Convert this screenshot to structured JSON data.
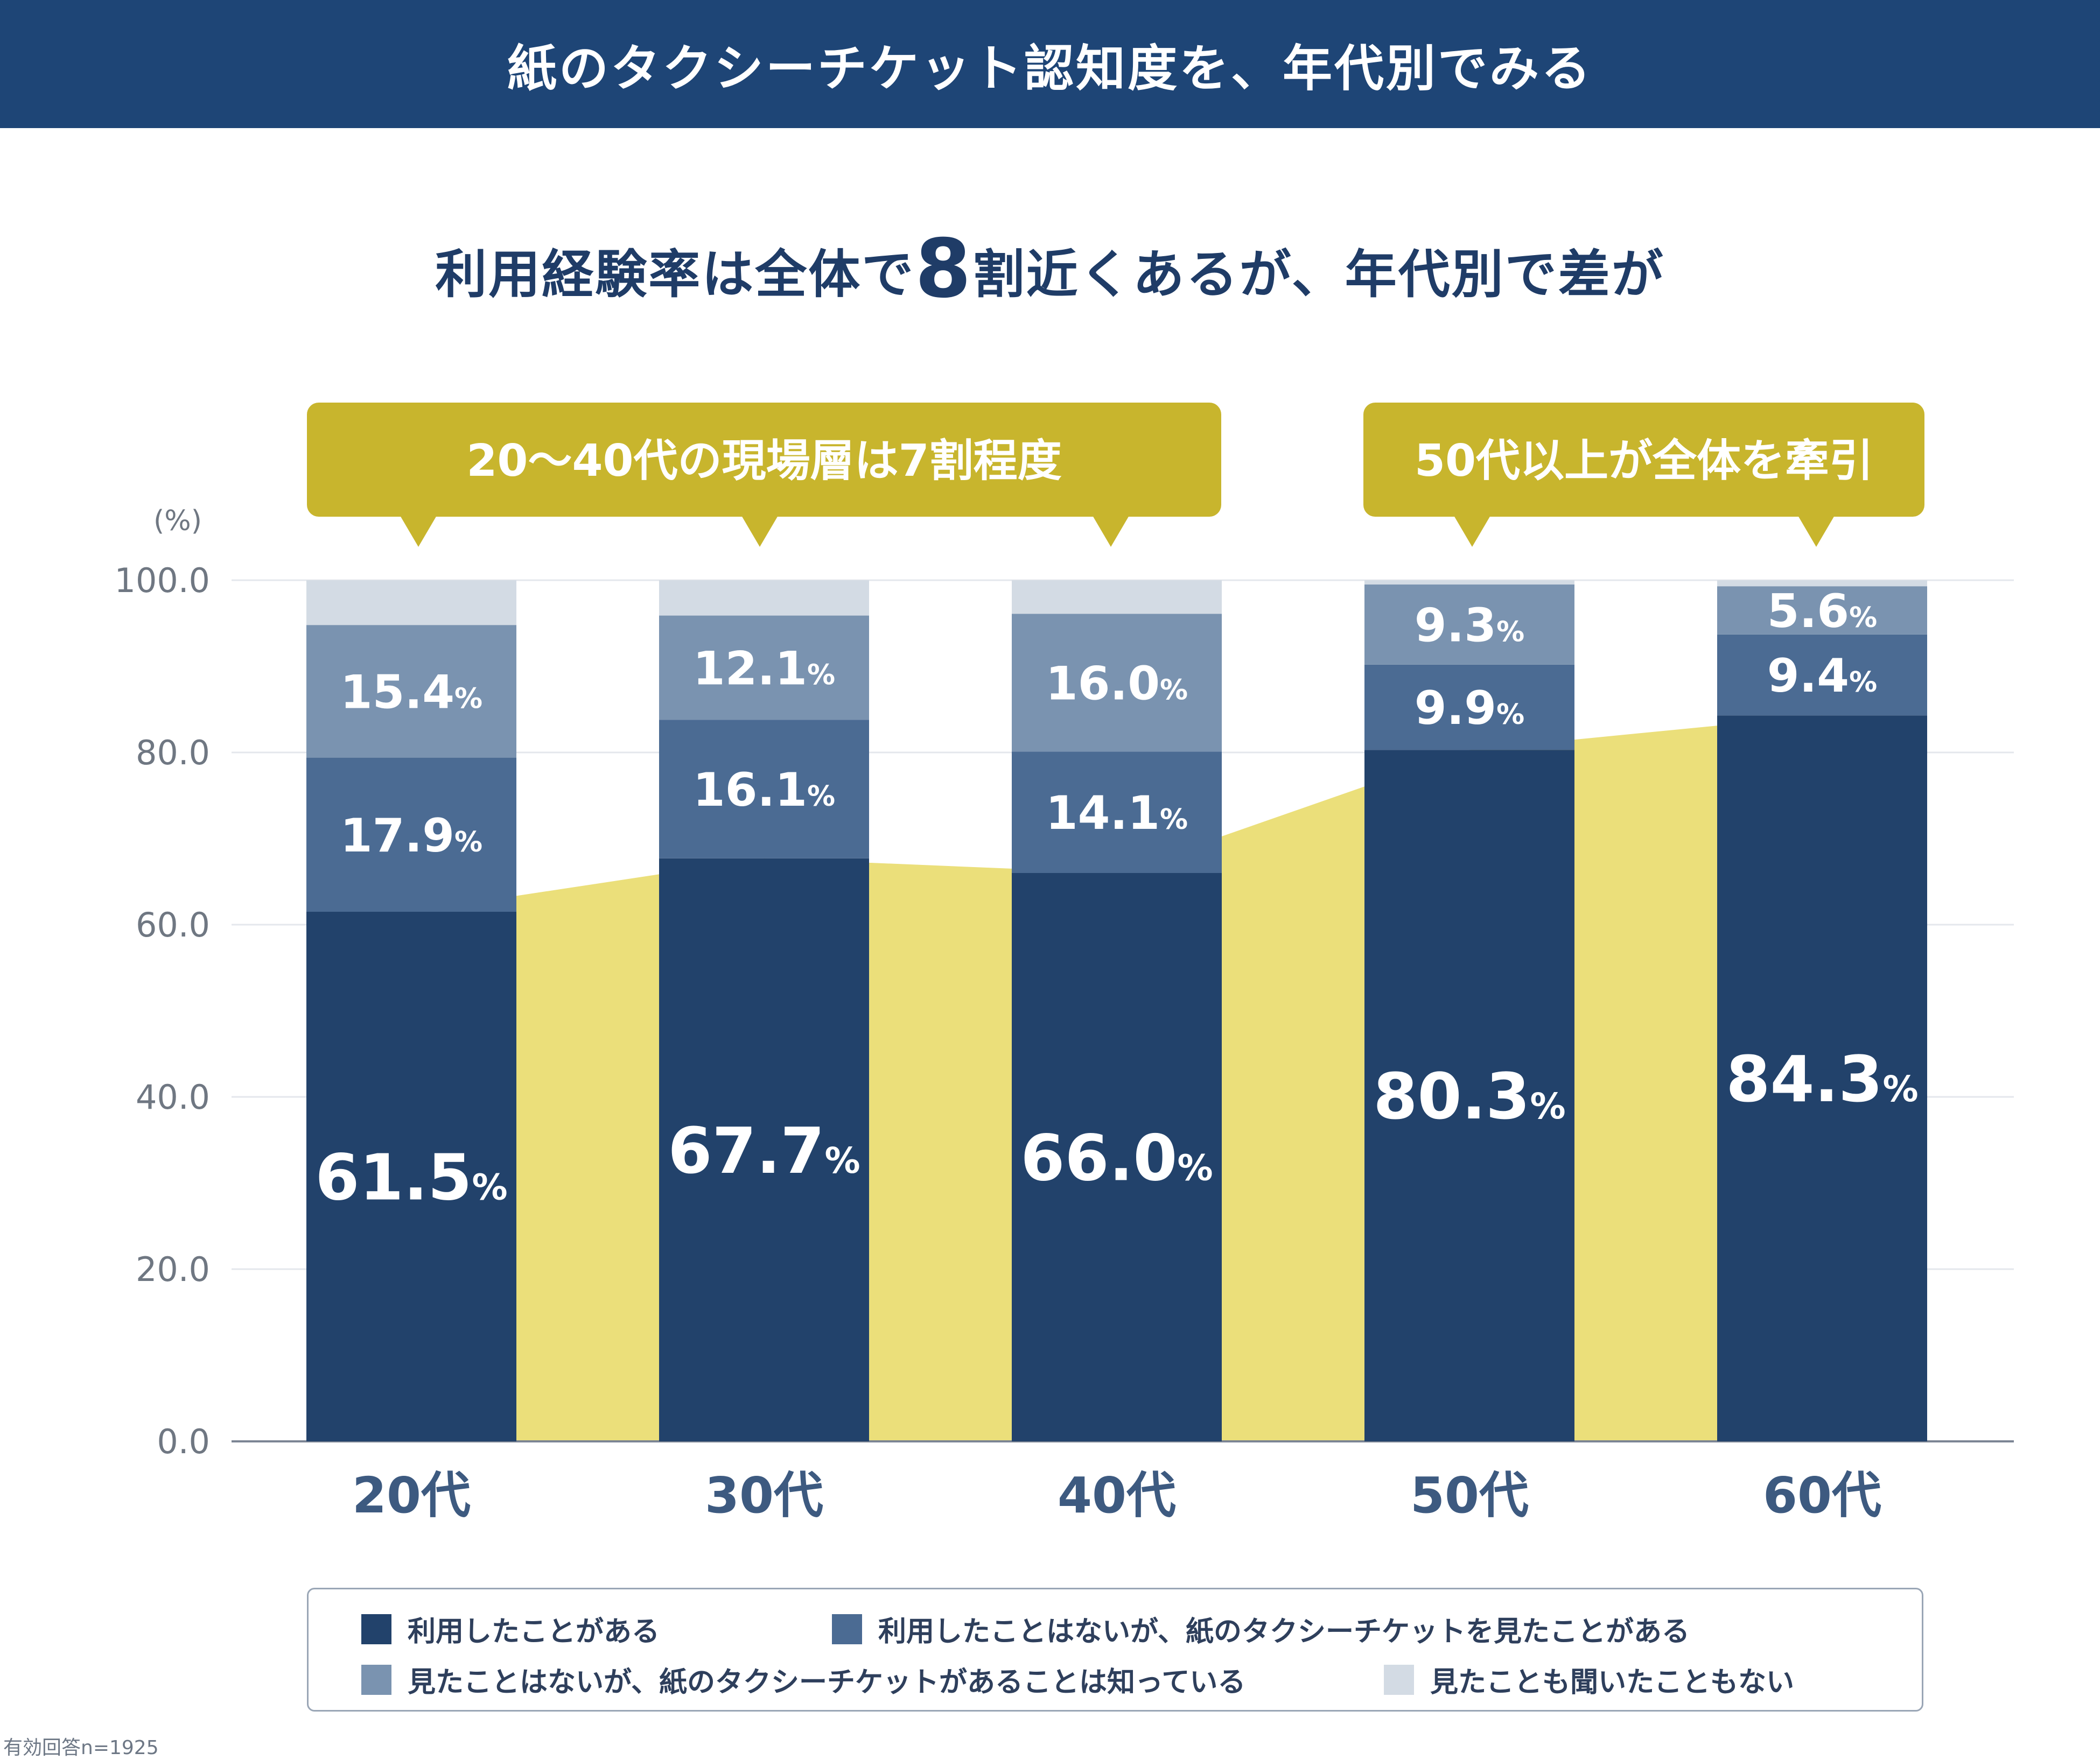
{
  "header": {
    "title": "紙のタクシーチケット認知度を、年代別でみる"
  },
  "subtitle": {
    "before": "利用経験率は全体で",
    "highlight": "8",
    "after": "割近くあるが、年代別で差が"
  },
  "callouts": [
    {
      "text": "20～40代の現場層は7割程度"
    },
    {
      "text": "50代以上が全体を牽引"
    }
  ],
  "chart_data": {
    "type": "bar",
    "stacked": true,
    "unit_label": "(%)",
    "value_suffix": "%",
    "categories": [
      "20代",
      "30代",
      "40代",
      "50代",
      "60代"
    ],
    "ylim": [
      0,
      100
    ],
    "yticks": [
      "0.0",
      "20.0",
      "40.0",
      "60.0",
      "80.0",
      "100.0"
    ],
    "series": [
      {
        "name": "利用したことがある",
        "color": "#22426b",
        "values": [
          61.5,
          67.7,
          66.0,
          80.3,
          84.3
        ],
        "labels": [
          "61.5",
          "67.7",
          "66.0",
          "80.3",
          "84.3"
        ]
      },
      {
        "name": "利用したことはないが、紙のタクシーチケットを見たことがある",
        "color": "#4b6b93",
        "values": [
          17.9,
          16.1,
          14.1,
          9.9,
          9.4
        ],
        "labels": [
          "17.9",
          "16.1",
          "14.1",
          "9.9",
          "9.4"
        ]
      },
      {
        "name": "見たことはないが、紙のタクシーチケットがあることは知っている",
        "color": "#7a93b0",
        "values": [
          15.4,
          12.1,
          16.0,
          9.3,
          5.6
        ],
        "labels": [
          "15.4",
          "12.1",
          "16.0",
          "9.3",
          "5.6"
        ]
      },
      {
        "name": "見たことも聞いたこともない",
        "color": "#d3dbe4",
        "values": [
          5.2,
          4.1,
          3.9,
          0.5,
          0.7
        ],
        "labels": [
          "",
          "",
          "",
          "",
          ""
        ]
      }
    ],
    "area_color": "#ebdf7a",
    "callout_color": "#c8b52d"
  },
  "footnote": "有効回答n=1925"
}
